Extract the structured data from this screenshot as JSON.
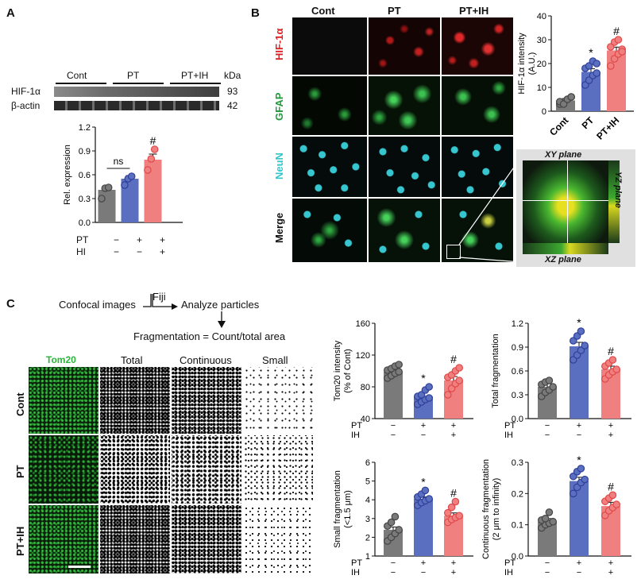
{
  "panels": {
    "A": "A",
    "B": "B",
    "C": "C"
  },
  "panelA": {
    "groups": [
      "Cont",
      "PT",
      "PT+IH"
    ],
    "kda": "kDa",
    "rows": [
      {
        "label": "HIF-1α",
        "kda": "93"
      },
      {
        "label": "β-actin",
        "kda": "42"
      }
    ],
    "ylabel": "Rel. expression",
    "rowlabels": [
      "PT",
      "HI"
    ],
    "signs": [
      [
        "−",
        "+",
        "+"
      ],
      [
        "−",
        "−",
        "+"
      ]
    ],
    "ns": "ns",
    "hash": "#"
  },
  "panelB": {
    "cols": [
      "Cont",
      "PT",
      "PT+IH"
    ],
    "rows": [
      "HIF-1α",
      "GFAP",
      "NeuN",
      "Merge"
    ],
    "row_colors": [
      "#e02020",
      "#1f9a3a",
      "#2fc8d0",
      "#111111"
    ],
    "ortho": {
      "xy": "XY plane",
      "yz": "YZ plane",
      "xz": "XZ plane"
    }
  },
  "panelC": {
    "flow": {
      "step1": "Confocal images",
      "tool": "Fiji",
      "step2": "Analyze particles",
      "formula": "Fragmentation = Count/total area"
    },
    "cols": [
      "Tom20",
      "Total",
      "Continuous",
      "Small"
    ],
    "rows": [
      "Cont",
      "PT",
      "PT+IH"
    ],
    "rowlabels": [
      "PT",
      "IH"
    ],
    "signs": [
      [
        "−",
        "+",
        "+"
      ],
      [
        "−",
        "−",
        "+"
      ]
    ]
  },
  "colors": {
    "cont": "#7a7a7a",
    "pt": "#5b6fc0",
    "ptih": "#f08080",
    "pt_edge": "#2f3f9a",
    "ptih_edge": "#e04848",
    "green": "#2bb43a"
  },
  "chart_data": [
    {
      "id": "A-western",
      "type": "bar",
      "categories": [
        "Cont",
        "PT",
        "PT+IH"
      ],
      "values": [
        0.41,
        0.55,
        0.79
      ],
      "errors": [
        0.05,
        0.04,
        0.07
      ],
      "points": [
        [
          0.3,
          0.43,
          0.44
        ],
        [
          0.47,
          0.55,
          0.58
        ],
        [
          0.66,
          0.8,
          0.92
        ]
      ],
      "xlabel": "",
      "ylabel": "Rel. expression",
      "ylim": [
        0,
        1.2
      ],
      "yticks": [
        0,
        0.3,
        0.6,
        0.9,
        1.2
      ],
      "ytick_labels": [
        "0.0",
        "0.3",
        "0.6",
        "0.9",
        "1.2"
      ],
      "annotations": [
        {
          "over": "PT+IH",
          "text": "#"
        },
        {
          "bracket": [
            "Cont",
            "PT"
          ],
          "text": "ns"
        }
      ]
    },
    {
      "id": "B-hif",
      "type": "bar",
      "categories": [
        "Cont",
        "PT",
        "PT+IH"
      ],
      "values": [
        4.5,
        16.5,
        25.5
      ],
      "errors": [
        0.7,
        1.3,
        1.4
      ],
      "points": [
        [
          3,
          4,
          5,
          6,
          4,
          3,
          5,
          6
        ],
        [
          11,
          13,
          15,
          16,
          18,
          19,
          21,
          20
        ],
        [
          19,
          22,
          24,
          26,
          27,
          29,
          30,
          25
        ]
      ],
      "ylabel": "HIF-1α intensity (A.U.)",
      "ylim": [
        0,
        40
      ],
      "yticks": [
        0,
        10,
        20,
        30,
        40
      ],
      "ytick_labels": [
        "0",
        "10",
        "20",
        "30",
        "40"
      ],
      "annotations": [
        {
          "over": "PT",
          "text": "*"
        },
        {
          "over": "PT+IH",
          "text": "#"
        }
      ]
    },
    {
      "id": "C-tom20",
      "type": "bar",
      "categories": [
        "Cont",
        "PT",
        "PT+IH"
      ],
      "values": [
        99,
        68,
        88
      ],
      "errors": [
        3,
        4,
        5
      ],
      "points": [
        [
          91,
          94,
          97,
          99,
          101,
          103,
          106,
          108
        ],
        [
          58,
          61,
          64,
          66,
          68,
          70,
          76,
          80
        ],
        [
          70,
          78,
          84,
          88,
          92,
          95,
          100,
          104
        ]
      ],
      "ylabel": "Tom20 intensity (% of Cont)",
      "ylim": [
        40,
        160
      ],
      "yticks": [
        40,
        80,
        120,
        160
      ],
      "ytick_labels": [
        "40",
        "80",
        "120",
        "160"
      ],
      "annotations": [
        {
          "over": "PT",
          "text": "*"
        },
        {
          "over": "PT+IH",
          "text": "#"
        }
      ]
    },
    {
      "id": "C-total",
      "type": "bar",
      "categories": [
        "Cont",
        "PT",
        "PT+IH"
      ],
      "values": [
        0.4,
        0.91,
        0.62
      ],
      "errors": [
        0.04,
        0.05,
        0.04
      ],
      "points": [
        [
          0.28,
          0.33,
          0.36,
          0.4,
          0.43,
          0.46,
          0.48
        ],
        [
          0.74,
          0.8,
          0.86,
          0.92,
          0.98,
          1.04,
          1.1
        ],
        [
          0.5,
          0.55,
          0.59,
          0.62,
          0.66,
          0.7,
          0.74
        ]
      ],
      "ylabel": "Total fragmentation",
      "ylim": [
        0,
        1.2
      ],
      "yticks": [
        0,
        0.3,
        0.6,
        0.9,
        1.2
      ],
      "ytick_labels": [
        "0.0",
        "0.3",
        "0.6",
        "0.9",
        "1.2"
      ],
      "annotations": [
        {
          "over": "PT",
          "text": "*"
        },
        {
          "over": "PT+IH",
          "text": "#"
        }
      ]
    },
    {
      "id": "C-small",
      "type": "bar",
      "categories": [
        "Cont",
        "PT",
        "PT+IH"
      ],
      "values": [
        2.4,
        4.05,
        3.15
      ],
      "errors": [
        0.15,
        0.1,
        0.15
      ],
      "points": [
        [
          1.8,
          2.0,
          2.2,
          2.4,
          2.6,
          2.8,
          3.1
        ],
        [
          3.7,
          3.85,
          3.95,
          4.05,
          4.15,
          4.3,
          4.5
        ],
        [
          2.8,
          2.95,
          3.05,
          3.15,
          3.3,
          3.6,
          3.9
        ]
      ],
      "ylabel": "Small fragmentation (<1.5 μm)",
      "ylim": [
        1,
        6
      ],
      "yticks": [
        1,
        2,
        3,
        4,
        5,
        6
      ],
      "ytick_labels": [
        "1",
        "2",
        "3",
        "4",
        "5",
        "6"
      ],
      "annotations": [
        {
          "over": "PT",
          "text": "*"
        },
        {
          "over": "PT+IH",
          "text": "#"
        }
      ]
    },
    {
      "id": "C-cont",
      "type": "bar",
      "categories": [
        "Cont",
        "PT",
        "PT+IH"
      ],
      "values": [
        0.11,
        0.24,
        0.16
      ],
      "errors": [
        0.01,
        0.012,
        0.012
      ],
      "points": [
        [
          0.09,
          0.1,
          0.105,
          0.11,
          0.115,
          0.12,
          0.14
        ],
        [
          0.2,
          0.22,
          0.235,
          0.245,
          0.255,
          0.27,
          0.28
        ],
        [
          0.13,
          0.145,
          0.155,
          0.165,
          0.175,
          0.185,
          0.195
        ]
      ],
      "ylabel": "Continuous fragmentation (2 μm to infinity)",
      "ylim": [
        0,
        0.3
      ],
      "yticks": [
        0,
        0.1,
        0.2,
        0.3
      ],
      "ytick_labels": [
        "0.0",
        "0.1",
        "0.2",
        "0.3"
      ],
      "annotations": [
        {
          "over": "PT",
          "text": "*"
        },
        {
          "over": "PT+IH",
          "text": "#"
        }
      ]
    }
  ]
}
